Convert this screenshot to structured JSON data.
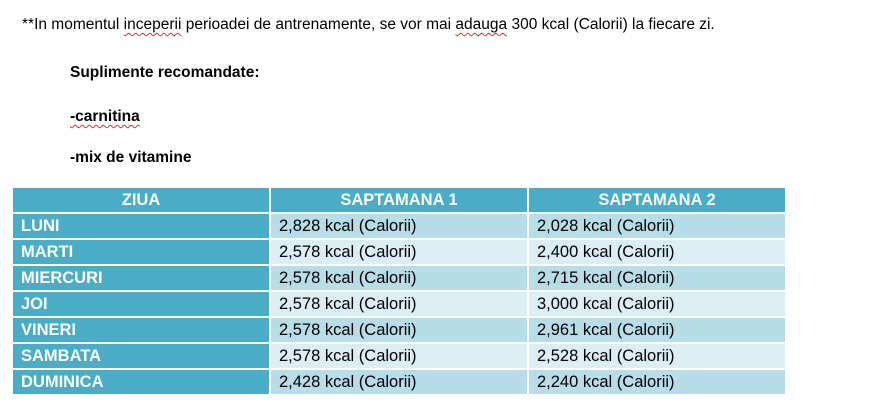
{
  "note": {
    "prefix": "**In momentul ",
    "w1": "inceperii",
    "mid": " perioadei de antrenamente, se vor mai ",
    "w2": "adauga",
    "suffix": " 300 kcal (Calorii) la fiecare zi."
  },
  "supplements": {
    "title": "Suplimente recomandate:",
    "item1": "-carnitina",
    "item2": "-mix de vitamine"
  },
  "table": {
    "headers": [
      "ZIUA",
      "SAPTAMANA 1",
      "SAPTAMANA 2"
    ],
    "rows": [
      {
        "day": "LUNI",
        "w1": "2,828 kcal (Calorii)",
        "w2": "2,028 kcal (Calorii)"
      },
      {
        "day": "MARTI",
        "w1": "2,578 kcal (Calorii)",
        "w2": "2,400 kcal (Calorii)"
      },
      {
        "day": "MIERCURI",
        "w1": "2,578 kcal (Calorii)",
        "w2": "2,715 kcal (Calorii)"
      },
      {
        "day": "JOI",
        "w1": "2,578 kcal (Calorii)",
        "w2": "3,000 kcal (Calorii)"
      },
      {
        "day": "VINERI",
        "w1": "2,578 kcal (Calorii)",
        "w2": "2,961 kcal (Calorii)"
      },
      {
        "day": "SAMBATA",
        "w1": "2,578 kcal (Calorii)",
        "w2": "2,528 kcal (Calorii)"
      },
      {
        "day": "DUMINICA",
        "w1": "2,428 kcal (Calorii)",
        "w2": "2,240 kcal (Calorii)"
      }
    ]
  },
  "colors": {
    "header": "#4aacc6",
    "row_dark": "#b7dde8",
    "row_light": "#dbeef4",
    "spellcheck": "#e0302a"
  }
}
